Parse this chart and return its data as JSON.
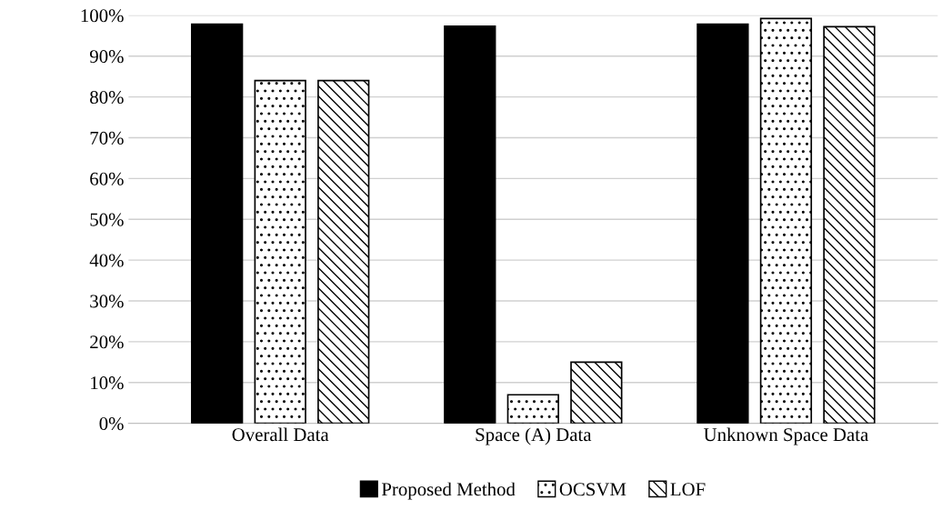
{
  "chart_data": {
    "type": "bar",
    "categories": [
      "Overall Data",
      "Space (A) Data",
      "Unknown Space Data"
    ],
    "series": [
      {
        "name": "Proposed Method",
        "color": "#000000",
        "values": [
          97.8,
          97.3,
          97.8
        ]
      },
      {
        "name": "OCSVM",
        "color": "#000000",
        "values": [
          84.0,
          7.0,
          99.2
        ]
      },
      {
        "name": "LOF",
        "color": "#000000",
        "values": [
          84.0,
          15.0,
          97.2
        ]
      }
    ],
    "ylim": [
      0,
      100
    ],
    "yticks": [
      {
        "value": 0,
        "label": "0%"
      },
      {
        "value": 10,
        "label": "10%"
      },
      {
        "value": 20,
        "label": "20%"
      },
      {
        "value": 30,
        "label": "30%"
      },
      {
        "value": 40,
        "label": "40%"
      },
      {
        "value": 50,
        "label": "50%"
      },
      {
        "value": 60,
        "label": "60%"
      },
      {
        "value": 70,
        "label": "70%"
      },
      {
        "value": 80,
        "label": "80%"
      },
      {
        "value": 90,
        "label": "90%"
      },
      {
        "value": 100,
        "label": "100%"
      }
    ],
    "grid": "y",
    "legend": "bottom"
  }
}
